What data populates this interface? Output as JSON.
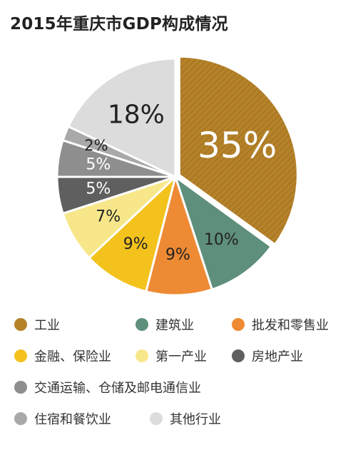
{
  "chart_data": {
    "type": "pie",
    "title": "2015年重庆市GDP构成情况",
    "categories": [
      "工业",
      "建筑业",
      "批发和零售业",
      "金融、保险业",
      "第一产业",
      "房地产业",
      "交通运输、仓储及邮电通信业",
      "住宿和餐饮业",
      "其他行业"
    ],
    "values": [
      35,
      10,
      9,
      9,
      7,
      5,
      5,
      2,
      18
    ],
    "value_labels": [
      "35%",
      "10%",
      "9%",
      "9%",
      "7%",
      "5%",
      "5%",
      "2%",
      "18%"
    ],
    "colors": [
      "#B5822A",
      "#5E8F7B",
      "#EE8A33",
      "#F3C21D",
      "#F8E78A",
      "#5F5F5F",
      "#8E8E8E",
      "#A9A9A9",
      "#DCDCDC"
    ],
    "label_colors": [
      "#ffffff",
      "#222222",
      "#222222",
      "#222222",
      "#222222",
      "#ffffff",
      "#ffffff",
      "#222222",
      "#222222"
    ],
    "start_angle_deg": 0,
    "direction": "clockwise",
    "explode_first": true,
    "legend_position": "bottom"
  }
}
